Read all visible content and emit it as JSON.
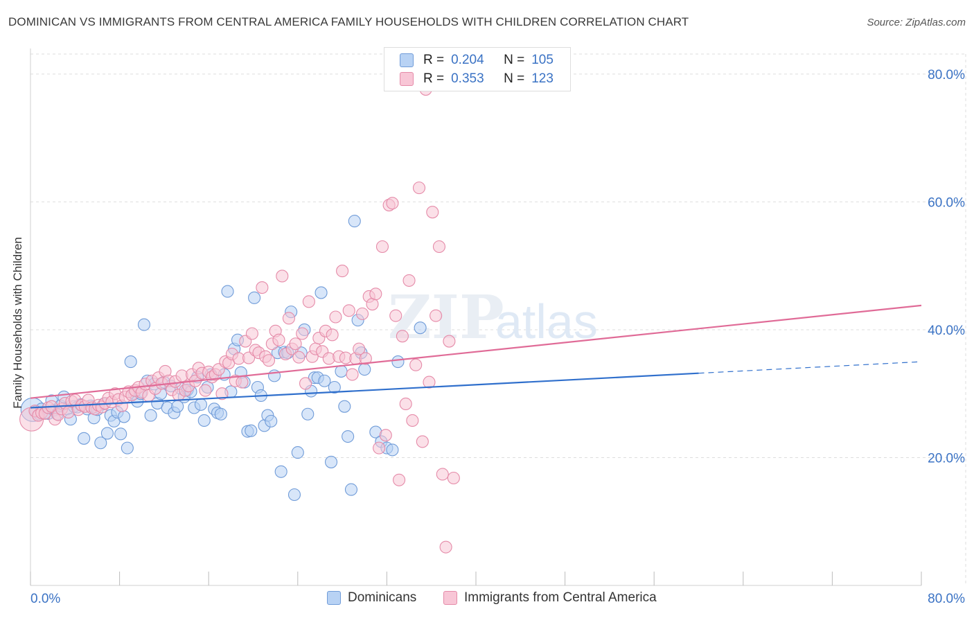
{
  "title": "DOMINICAN VS IMMIGRANTS FROM CENTRAL AMERICA FAMILY HOUSEHOLDS WITH CHILDREN CORRELATION CHART",
  "source": "Source: ZipAtlas.com",
  "legend_box": {
    "rows": [
      {
        "r_label": "R =",
        "r_value": "0.204",
        "n_label": "N =",
        "n_value": "105",
        "color": "#6f9bd8"
      },
      {
        "r_label": "R =",
        "r_value": "0.353",
        "n_label": "N =",
        "n_value": "123",
        "color": "#e58aa8"
      }
    ]
  },
  "bottom_legend": {
    "blue": "Dominicans",
    "pink": "Immigrants from Central America"
  },
  "colors": {
    "blue_fill": "#b8d2f4",
    "blue_stroke": "#6f9bd8",
    "blue_line": "#2f6fcc",
    "pink_fill": "#f8c6d6",
    "pink_stroke": "#e58aa8",
    "pink_line": "#e06b97",
    "tick_label": "#3a72c4",
    "grid": "#dddddd"
  },
  "chart_data": {
    "type": "scatter",
    "xlabel": "",
    "ylabel": "Family Households with Children",
    "xlim": [
      0,
      80
    ],
    "ylim": [
      0,
      84
    ],
    "x_tick_labels": [
      "0.0%",
      "80.0%"
    ],
    "y_ticks": [
      20,
      40,
      60,
      80
    ],
    "y_tick_labels": [
      "20.0%",
      "40.0%",
      "60.0%",
      "80.0%"
    ],
    "grid": true,
    "watermark": "ZIPatlas",
    "series": [
      {
        "name": "Dominicans",
        "r": 0.204,
        "n": 105,
        "trend": {
          "x0": 0,
          "y0": 27.8,
          "x1": 60,
          "y1": 33.2,
          "dashed_to_x": 80,
          "dashed_to_y": 35.0
        },
        "points": [
          [
            0.2,
            27.5
          ],
          [
            0.5,
            27.2
          ],
          [
            0.8,
            26.8
          ],
          [
            1.0,
            27.6
          ],
          [
            1.3,
            27.0
          ],
          [
            1.6,
            26.9
          ],
          [
            1.9,
            28.9
          ],
          [
            2.1,
            27.4
          ],
          [
            2.4,
            26.8
          ],
          [
            2.7,
            28.1
          ],
          [
            3.0,
            29.5
          ],
          [
            3.3,
            27.6
          ],
          [
            3.6,
            26.0
          ],
          [
            3.9,
            28.0
          ],
          [
            4.2,
            27.9
          ],
          [
            4.5,
            28.3
          ],
          [
            4.8,
            23.0
          ],
          [
            5.1,
            27.6
          ],
          [
            5.4,
            28.1
          ],
          [
            5.7,
            26.2
          ],
          [
            6.0,
            27.5
          ],
          [
            6.3,
            22.3
          ],
          [
            6.6,
            28.4
          ],
          [
            6.9,
            23.8
          ],
          [
            7.2,
            26.6
          ],
          [
            7.5,
            25.7
          ],
          [
            7.8,
            27.1
          ],
          [
            8.1,
            23.7
          ],
          [
            8.4,
            26.4
          ],
          [
            8.7,
            21.5
          ],
          [
            9.0,
            35.0
          ],
          [
            9.3,
            30.0
          ],
          [
            9.6,
            28.8
          ],
          [
            9.9,
            30.0
          ],
          [
            10.2,
            40.8
          ],
          [
            10.5,
            32.0
          ],
          [
            10.8,
            26.6
          ],
          [
            11.1,
            31.5
          ],
          [
            11.4,
            28.5
          ],
          [
            11.7,
            30.0
          ],
          [
            12.0,
            31.8
          ],
          [
            12.3,
            27.8
          ],
          [
            12.6,
            31.2
          ],
          [
            12.9,
            27.0
          ],
          [
            13.2,
            28.0
          ],
          [
            13.5,
            30.8
          ],
          [
            13.8,
            29.5
          ],
          [
            14.1,
            30.6
          ],
          [
            14.4,
            30.3
          ],
          [
            14.7,
            27.8
          ],
          [
            15.0,
            32.6
          ],
          [
            15.3,
            28.3
          ],
          [
            15.6,
            25.8
          ],
          [
            15.9,
            31.0
          ],
          [
            16.2,
            33.0
          ],
          [
            16.5,
            27.6
          ],
          [
            16.8,
            27.0
          ],
          [
            17.1,
            26.8
          ],
          [
            17.4,
            33.0
          ],
          [
            17.7,
            46.0
          ],
          [
            18.0,
            30.3
          ],
          [
            18.3,
            37.0
          ],
          [
            18.6,
            38.4
          ],
          [
            18.9,
            33.3
          ],
          [
            19.2,
            31.8
          ],
          [
            19.5,
            24.1
          ],
          [
            19.8,
            24.2
          ],
          [
            20.1,
            45.0
          ],
          [
            20.4,
            31.0
          ],
          [
            20.7,
            29.7
          ],
          [
            21.0,
            25.0
          ],
          [
            21.3,
            26.6
          ],
          [
            21.6,
            25.7
          ],
          [
            21.9,
            32.8
          ],
          [
            22.2,
            36.4
          ],
          [
            22.5,
            17.8
          ],
          [
            22.8,
            36.5
          ],
          [
            23.1,
            36.4
          ],
          [
            23.4,
            42.8
          ],
          [
            23.7,
            14.2
          ],
          [
            24.0,
            20.8
          ],
          [
            24.3,
            36.4
          ],
          [
            24.6,
            40.0
          ],
          [
            24.9,
            26.8
          ],
          [
            25.2,
            30.4
          ],
          [
            25.5,
            32.5
          ],
          [
            25.8,
            32.5
          ],
          [
            26.1,
            45.8
          ],
          [
            26.4,
            32.0
          ],
          [
            27.0,
            19.3
          ],
          [
            27.3,
            31.0
          ],
          [
            27.9,
            33.5
          ],
          [
            28.2,
            28.0
          ],
          [
            28.5,
            23.3
          ],
          [
            28.8,
            15.0
          ],
          [
            29.1,
            57.0
          ],
          [
            29.4,
            41.5
          ],
          [
            29.7,
            36.4
          ],
          [
            30.0,
            33.8
          ],
          [
            31.0,
            24.0
          ],
          [
            31.5,
            22.5
          ],
          [
            32.0,
            21.5
          ],
          [
            32.5,
            21.2
          ],
          [
            33.0,
            35.0
          ],
          [
            35.0,
            40.3
          ]
        ]
      },
      {
        "name": "Immigrants from Central America",
        "r": 0.353,
        "n": 123,
        "trend": {
          "x0": 0,
          "y0": 29.3,
          "x1": 80,
          "y1": 43.8
        },
        "points": [
          [
            0.1,
            26.0
          ],
          [
            0.4,
            27.3
          ],
          [
            0.7,
            26.6
          ],
          [
            1.0,
            27.0
          ],
          [
            1.3,
            26.9
          ],
          [
            1.6,
            27.8
          ],
          [
            1.9,
            28.0
          ],
          [
            2.2,
            26.0
          ],
          [
            2.5,
            26.7
          ],
          [
            2.8,
            27.6
          ],
          [
            3.1,
            28.5
          ],
          [
            3.4,
            27.1
          ],
          [
            3.7,
            28.8
          ],
          [
            4.0,
            29.0
          ],
          [
            4.3,
            27.5
          ],
          [
            4.6,
            28.2
          ],
          [
            4.9,
            28.0
          ],
          [
            5.2,
            29.0
          ],
          [
            5.5,
            27.8
          ],
          [
            5.8,
            27.6
          ],
          [
            6.1,
            28.2
          ],
          [
            6.4,
            27.9
          ],
          [
            6.7,
            28.5
          ],
          [
            7.0,
            29.3
          ],
          [
            7.3,
            28.7
          ],
          [
            7.6,
            30.0
          ],
          [
            7.9,
            29.1
          ],
          [
            8.2,
            28.1
          ],
          [
            8.5,
            29.5
          ],
          [
            8.8,
            30.3
          ],
          [
            9.1,
            29.8
          ],
          [
            9.4,
            30.5
          ],
          [
            9.7,
            31.0
          ],
          [
            10.0,
            30.2
          ],
          [
            10.3,
            31.5
          ],
          [
            10.6,
            29.7
          ],
          [
            10.9,
            32.0
          ],
          [
            11.2,
            30.8
          ],
          [
            11.5,
            32.5
          ],
          [
            11.8,
            31.6
          ],
          [
            12.1,
            33.5
          ],
          [
            12.4,
            32.0
          ],
          [
            12.7,
            30.6
          ],
          [
            13.0,
            31.9
          ],
          [
            13.3,
            29.8
          ],
          [
            13.6,
            32.8
          ],
          [
            13.9,
            30.5
          ],
          [
            14.2,
            31.2
          ],
          [
            14.5,
            33.0
          ],
          [
            14.8,
            32.0
          ],
          [
            15.1,
            34.0
          ],
          [
            15.4,
            33.2
          ],
          [
            15.7,
            30.5
          ],
          [
            16.0,
            33.4
          ],
          [
            16.3,
            32.6
          ],
          [
            16.6,
            33.0
          ],
          [
            16.9,
            33.8
          ],
          [
            17.2,
            30.0
          ],
          [
            17.5,
            35.0
          ],
          [
            17.8,
            34.8
          ],
          [
            18.1,
            36.2
          ],
          [
            18.4,
            32.0
          ],
          [
            18.7,
            35.5
          ],
          [
            19.0,
            31.8
          ],
          [
            19.3,
            38.2
          ],
          [
            19.6,
            35.6
          ],
          [
            19.9,
            39.4
          ],
          [
            20.2,
            36.8
          ],
          [
            20.5,
            36.4
          ],
          [
            20.8,
            46.6
          ],
          [
            21.1,
            35.8
          ],
          [
            21.4,
            35.2
          ],
          [
            21.7,
            37.8
          ],
          [
            22.0,
            39.8
          ],
          [
            22.3,
            38.4
          ],
          [
            22.6,
            48.4
          ],
          [
            22.9,
            36.2
          ],
          [
            23.2,
            41.8
          ],
          [
            23.5,
            37.0
          ],
          [
            23.8,
            37.8
          ],
          [
            24.1,
            35.7
          ],
          [
            24.4,
            39.4
          ],
          [
            24.7,
            31.6
          ],
          [
            25.0,
            44.4
          ],
          [
            25.3,
            35.8
          ],
          [
            25.6,
            37.0
          ],
          [
            25.9,
            38.7
          ],
          [
            26.2,
            36.6
          ],
          [
            26.5,
            39.8
          ],
          [
            26.8,
            35.5
          ],
          [
            27.1,
            39.2
          ],
          [
            27.4,
            42.0
          ],
          [
            27.7,
            35.8
          ],
          [
            28.0,
            49.2
          ],
          [
            28.3,
            35.6
          ],
          [
            28.6,
            43.0
          ],
          [
            28.9,
            33.0
          ],
          [
            29.2,
            35.5
          ],
          [
            29.5,
            37.0
          ],
          [
            29.8,
            42.5
          ],
          [
            30.1,
            35.5
          ],
          [
            30.4,
            45.2
          ],
          [
            30.7,
            44.0
          ],
          [
            31.0,
            45.6
          ],
          [
            31.3,
            21.5
          ],
          [
            31.6,
            53.0
          ],
          [
            31.9,
            23.5
          ],
          [
            32.2,
            59.5
          ],
          [
            32.5,
            59.8
          ],
          [
            32.8,
            42.2
          ],
          [
            33.1,
            16.5
          ],
          [
            33.4,
            39.0
          ],
          [
            33.7,
            28.4
          ],
          [
            34.0,
            47.7
          ],
          [
            34.3,
            25.8
          ],
          [
            34.6,
            34.5
          ],
          [
            34.9,
            62.2
          ],
          [
            35.2,
            22.5
          ],
          [
            35.5,
            77.6
          ],
          [
            35.8,
            31.8
          ],
          [
            36.1,
            58.4
          ],
          [
            36.4,
            42.2
          ],
          [
            36.7,
            53.0
          ],
          [
            37.0,
            17.4
          ],
          [
            37.3,
            6.0
          ],
          [
            37.6,
            38.2
          ],
          [
            38.0,
            16.8
          ]
        ]
      }
    ]
  }
}
